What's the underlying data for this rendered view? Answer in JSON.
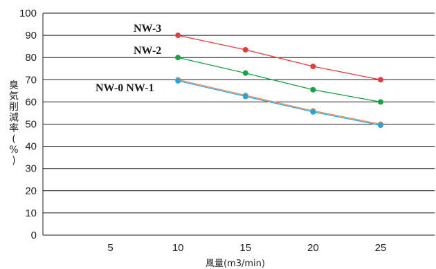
{
  "chart_data": {
    "type": "line",
    "xlabel": "風量(m3/min)",
    "ylabel_chars": [
      "臭",
      "気",
      "削",
      "減",
      "率",
      "(",
      "%",
      ")"
    ],
    "xlim": [
      0,
      29
    ],
    "ylim": [
      0,
      100
    ],
    "xticks": [
      "5",
      "10",
      "15",
      "20",
      "25"
    ],
    "yticks": [
      "0",
      "10",
      "20",
      "30",
      "40",
      "50",
      "60",
      "70",
      "80",
      "90",
      "100"
    ],
    "grid": "horizontal",
    "series": [
      {
        "name": "NW-3",
        "color": "#e53b3b",
        "points": [
          [
            10,
            90
          ],
          [
            15,
            83.5
          ],
          [
            20,
            76
          ],
          [
            25,
            70
          ]
        ]
      },
      {
        "name": "NW-2",
        "color": "#1aa046",
        "points": [
          [
            10,
            80
          ],
          [
            15,
            73
          ],
          [
            20,
            65.5
          ],
          [
            25,
            60
          ]
        ]
      },
      {
        "name": "NW-1",
        "color": "#e8905c",
        "points": [
          [
            10,
            70
          ],
          [
            15,
            63
          ],
          [
            20,
            56
          ],
          [
            25,
            50
          ]
        ]
      },
      {
        "name": "NW-0",
        "color": "#27a3e0",
        "points": [
          [
            10,
            69.5
          ],
          [
            15,
            62.5
          ],
          [
            20,
            55.5
          ],
          [
            25,
            49.5
          ]
        ]
      }
    ],
    "annotations": [
      "NW-3",
      "NW-2",
      "NW-0 NW-1"
    ]
  }
}
